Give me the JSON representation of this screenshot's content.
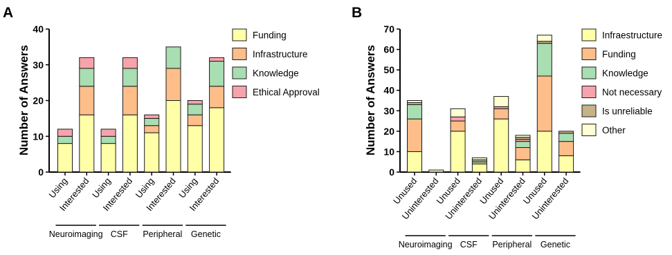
{
  "colors": {
    "funding": "#FFFFA8",
    "infrastructure": "#FDBE8A",
    "knowledge": "#A9DDB2",
    "ethical_approval": "#F7A3AB",
    "not_necessary": "#F7A3AB",
    "is_unreliable": "#C4B486",
    "other": "#FFFFD4"
  },
  "chart_data": [
    {
      "panel": "A",
      "type": "bar",
      "stacked": true,
      "ylabel": "Number of Answers",
      "ylim": [
        0,
        40
      ],
      "yticks": [
        0,
        10,
        20,
        30,
        40
      ],
      "categories": [
        "Using",
        "Interested",
        "Using",
        "Interested",
        "Using",
        "Interested",
        "Using",
        "Interested"
      ],
      "groups": [
        "Neuroimaging",
        "CSF",
        "Peripheral",
        "Genetic"
      ],
      "legend_position": "right",
      "series": [
        {
          "name": "Funding",
          "color_key": "funding",
          "values": [
            8,
            16,
            8,
            16,
            11,
            20,
            13,
            18
          ]
        },
        {
          "name": "Infrastructure",
          "color_key": "infrastructure",
          "values": [
            0,
            8,
            0,
            8,
            2,
            9,
            3,
            6
          ]
        },
        {
          "name": "Knowledge",
          "color_key": "knowledge",
          "values": [
            2,
            5,
            2,
            5,
            2,
            6,
            3,
            7
          ]
        },
        {
          "name": "Ethical Approval",
          "color_key": "ethical_approval",
          "values": [
            2,
            3,
            2,
            3,
            1,
            0,
            1,
            1
          ]
        }
      ]
    },
    {
      "panel": "B",
      "type": "bar",
      "stacked": true,
      "ylabel": "Number of Answers",
      "ylim": [
        0,
        70
      ],
      "yticks": [
        0,
        10,
        20,
        30,
        40,
        50,
        60,
        70
      ],
      "categories": [
        "Unused",
        "Uninterested",
        "Unused",
        "Uninterested",
        "Unused",
        "Uninterested",
        "Unused",
        "Uninterested"
      ],
      "groups": [
        "Neuroimaging",
        "CSF",
        "Peripheral",
        "Genetic"
      ],
      "legend_position": "right",
      "series": [
        {
          "name": "Infraestructure",
          "color_key": "funding",
          "values": [
            10,
            0,
            20,
            4,
            26,
            6,
            20,
            8
          ]
        },
        {
          "name": "Funding",
          "color_key": "infrastructure",
          "values": [
            16,
            0,
            5,
            0,
            5,
            6,
            27,
            7
          ]
        },
        {
          "name": "Knowledge",
          "color_key": "knowledge",
          "values": [
            7,
            0,
            0,
            1,
            0,
            3,
            16,
            4
          ]
        },
        {
          "name": "Not necessary",
          "color_key": "not_necessary",
          "values": [
            0,
            0,
            2,
            0,
            1,
            1,
            0,
            0
          ]
        },
        {
          "name": "Is unreliable",
          "color_key": "is_unreliable",
          "values": [
            1,
            0,
            0,
            1,
            0,
            1,
            1,
            1
          ]
        },
        {
          "name": "Other",
          "color_key": "other",
          "values": [
            1,
            1,
            4,
            1,
            5,
            1,
            3,
            0
          ]
        }
      ]
    }
  ]
}
